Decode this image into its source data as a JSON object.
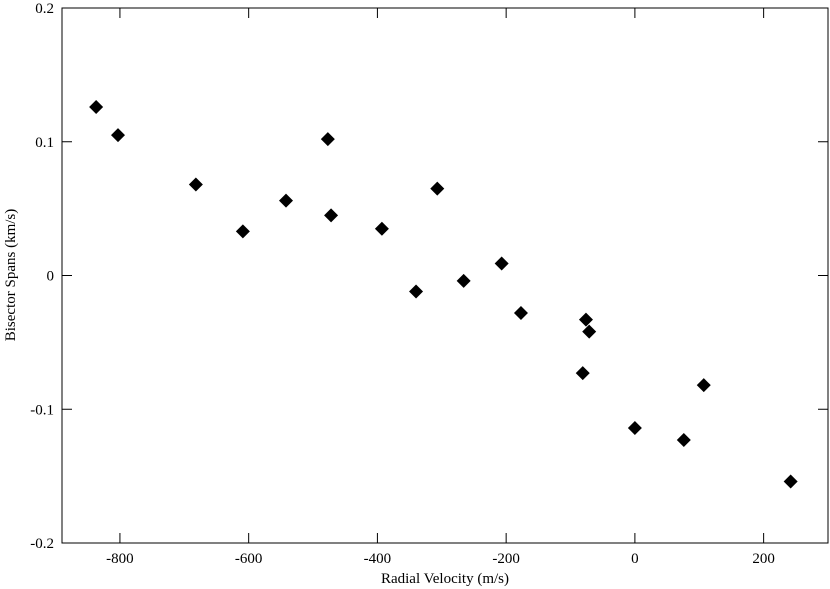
{
  "chart_data": {
    "type": "scatter",
    "x_label": "Radial Velocity (m/s)",
    "y_label": "Bisector Spans (km/s)",
    "color": "#000000",
    "xlim": [
      -890,
      300
    ],
    "xticks": [
      -800,
      -600,
      -400,
      -200,
      0,
      200
    ],
    "ylim": [
      -0.2,
      0.2
    ],
    "yticks": [
      -0.2,
      -0.1,
      0,
      0.1,
      0.2
    ],
    "x": [
      -837,
      -803,
      -682,
      -609,
      -542,
      -477,
      -472,
      -393,
      -340,
      -307,
      -266,
      -207,
      -177,
      -81,
      -76,
      -71,
      0,
      76,
      107,
      242
    ],
    "values": [
      0.126,
      0.105,
      0.068,
      0.033,
      0.056,
      0.102,
      0.045,
      0.035,
      -0.012,
      0.065,
      -0.004,
      0.009,
      -0.028,
      -0.073,
      -0.033,
      -0.042,
      -0.114,
      -0.123,
      -0.082,
      -0.154
    ]
  }
}
